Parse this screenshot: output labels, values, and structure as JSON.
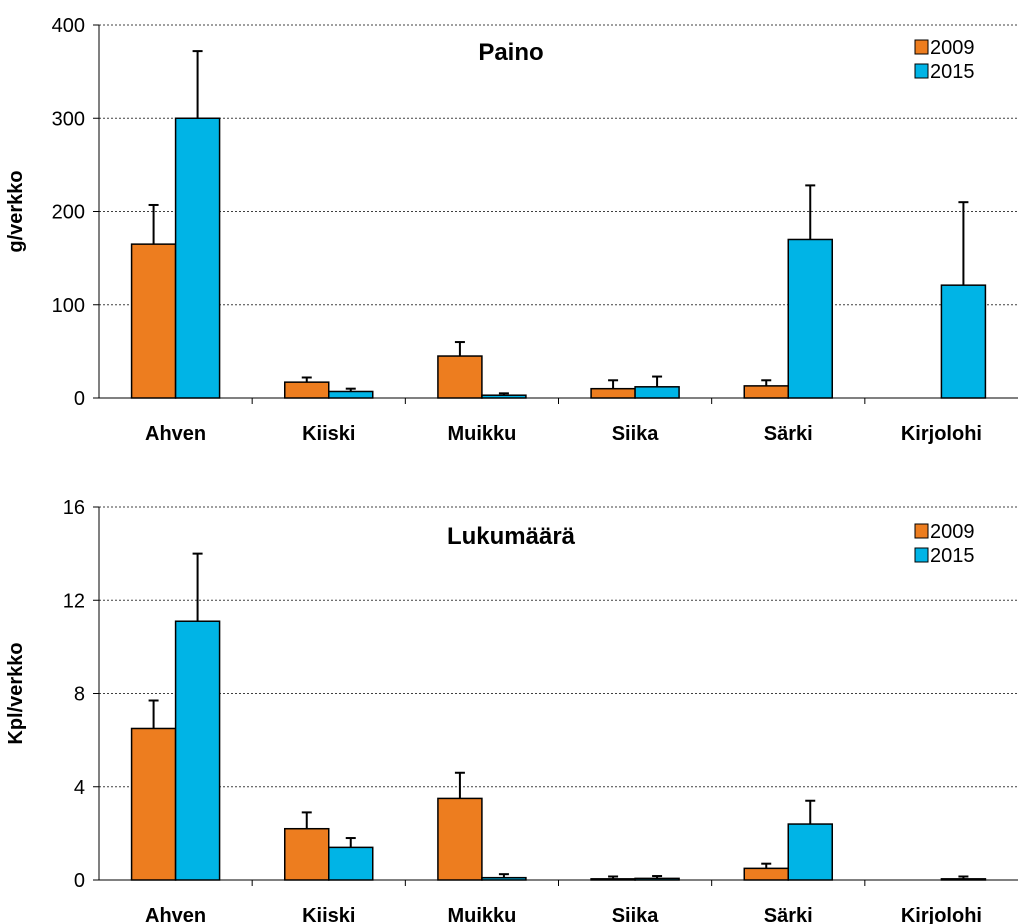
{
  "colors": {
    "s2009": "#ED7D1F",
    "s2015": "#00B4E6",
    "grid": "#404040",
    "axis": "#000000"
  },
  "chart_data": [
    {
      "type": "bar",
      "title": "Paino",
      "xlabel": "",
      "ylabel": "g/verkko",
      "ylim": [
        0,
        400
      ],
      "yticks": [
        0,
        100,
        200,
        300,
        400
      ],
      "grid": true,
      "legend_position": "top-right",
      "categories": [
        "Ahven",
        "Kiiski",
        "Muikku",
        "Siika",
        "Särki",
        "Kirjolohi"
      ],
      "series": [
        {
          "name": "2009",
          "values": [
            165,
            17,
            45,
            10,
            13,
            0
          ],
          "errors": [
            42,
            5,
            15,
            9,
            6,
            0
          ]
        },
        {
          "name": "2015",
          "values": [
            300,
            7,
            3,
            12,
            170,
            121
          ],
          "errors": [
            72,
            3,
            2,
            11,
            58,
            89
          ]
        }
      ]
    },
    {
      "type": "bar",
      "title": "Lukumäärä",
      "xlabel": "",
      "ylabel": "Kpl/verkko",
      "ylim": [
        0,
        16
      ],
      "yticks": [
        0,
        4,
        8,
        12,
        16
      ],
      "grid": true,
      "legend_position": "top-right",
      "categories": [
        "Ahven",
        "Kiiski",
        "Muikku",
        "Siika",
        "Särki",
        "Kirjolohi"
      ],
      "series": [
        {
          "name": "2009",
          "values": [
            6.5,
            2.2,
            3.5,
            0.05,
            0.5,
            0
          ],
          "errors": [
            1.2,
            0.7,
            1.1,
            0.1,
            0.2,
            0
          ]
        },
        {
          "name": "2015",
          "values": [
            11.1,
            1.4,
            0.1,
            0.07,
            2.4,
            0.05
          ],
          "errors": [
            2.9,
            0.4,
            0.15,
            0.1,
            1.0,
            0.1
          ]
        }
      ]
    }
  ]
}
